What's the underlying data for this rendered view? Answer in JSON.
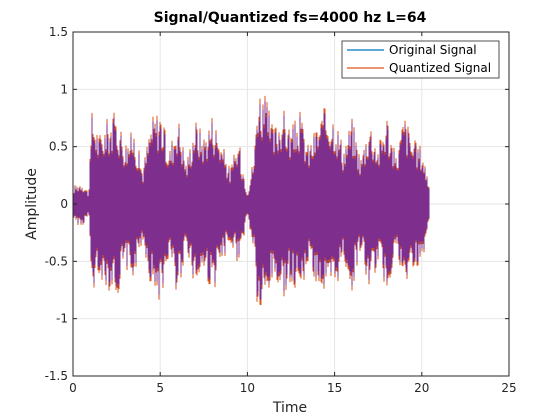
{
  "chart_data": {
    "type": "line",
    "title": "Signal/Quantized fs=4000 hz L=64",
    "xlabel": "Time",
    "ylabel": "Amplitude",
    "xlim": [
      0,
      25
    ],
    "ylim": [
      -1.5,
      1.5
    ],
    "xticks": [
      0,
      5,
      10,
      15,
      20,
      25
    ],
    "yticks": [
      -1.5,
      -1,
      -0.5,
      0,
      0.5,
      1,
      1.5
    ],
    "x_tick_labels": [
      "0",
      "5",
      "10",
      "15",
      "20",
      "25"
    ],
    "y_tick_labels": [
      "-1.5",
      "-1",
      "-0.5",
      "0",
      "0.5",
      "1",
      "1.5"
    ],
    "grid": true,
    "legend_position": "top-right",
    "series": [
      {
        "name": "Original Signal",
        "color": "#0072BD",
        "x": [
          0,
          0.5,
          0.9,
          1.1,
          1.5,
          2.0,
          2.5,
          3.0,
          3.5,
          4.0,
          4.5,
          5.0,
          5.5,
          6.0,
          6.5,
          7.0,
          7.5,
          8.0,
          8.5,
          9.0,
          9.5,
          10.0,
          10.4,
          10.6,
          11.0,
          11.5,
          12.0,
          12.5,
          13.0,
          13.5,
          14.0,
          14.5,
          15.0,
          15.5,
          16.0,
          16.5,
          17.0,
          17.5,
          18.0,
          18.5,
          19.0,
          19.5,
          20.0,
          20.4
        ],
        "values": [
          0.15,
          0.2,
          0.1,
          0.85,
          0.6,
          0.75,
          0.8,
          0.55,
          0.65,
          0.3,
          0.75,
          0.85,
          0.45,
          0.8,
          0.35,
          0.75,
          0.6,
          0.8,
          0.55,
          0.3,
          0.55,
          0.1,
          0.45,
          1.05,
          0.95,
          0.65,
          0.85,
          0.65,
          0.8,
          0.5,
          0.7,
          0.85,
          0.8,
          0.5,
          0.75,
          0.4,
          0.75,
          0.5,
          0.8,
          0.4,
          0.8,
          0.55,
          0.5,
          0.2
        ]
      },
      {
        "name": "Quantized Signal",
        "color": "#D95319",
        "x": [
          0,
          0.5,
          0.9,
          1.1,
          1.5,
          2.0,
          2.5,
          3.0,
          3.5,
          4.0,
          4.5,
          5.0,
          5.5,
          6.0,
          6.5,
          7.0,
          7.5,
          8.0,
          8.5,
          9.0,
          9.5,
          10.0,
          10.4,
          10.6,
          11.0,
          11.5,
          12.0,
          12.5,
          13.0,
          13.5,
          14.0,
          14.5,
          15.0,
          15.5,
          16.0,
          16.5,
          17.0,
          17.5,
          18.0,
          18.5,
          19.0,
          19.5,
          20.0,
          20.4
        ],
        "values": [
          0.16,
          0.21,
          0.11,
          0.87,
          0.62,
          0.77,
          0.82,
          0.57,
          0.67,
          0.32,
          0.77,
          0.87,
          0.47,
          0.82,
          0.37,
          0.77,
          0.62,
          0.82,
          0.57,
          0.32,
          0.57,
          0.11,
          0.47,
          1.08,
          0.97,
          0.67,
          0.87,
          0.67,
          0.82,
          0.52,
          0.72,
          0.87,
          0.82,
          0.52,
          0.77,
          0.42,
          0.77,
          0.52,
          0.82,
          0.42,
          0.82,
          0.57,
          0.52,
          0.21
        ]
      }
    ]
  },
  "signal_fill_color": "#7E2F8E"
}
